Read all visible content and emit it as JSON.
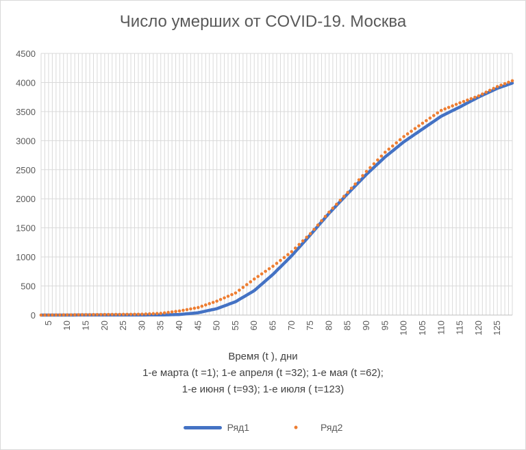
{
  "chart_data": {
    "type": "line",
    "title": "Число умерших от COVID-19. Москва",
    "xlabel_lines": [
      "Время (t ), дни",
      "1-е марта (t =1); 1-е апреля (t =32); 1-е мая (t =62);",
      "1-е июня ( t=93); 1-е июля ( t=123)"
    ],
    "ylabel": "",
    "ylim": [
      0,
      4500
    ],
    "yticks": [
      0,
      500,
      1000,
      1500,
      2000,
      2500,
      3000,
      3500,
      4000,
      4500
    ],
    "xlim": [
      3,
      129
    ],
    "xticks": [
      5,
      10,
      15,
      20,
      25,
      30,
      35,
      40,
      45,
      50,
      55,
      60,
      65,
      70,
      75,
      80,
      85,
      90,
      95,
      100,
      105,
      110,
      115,
      120,
      125
    ],
    "grid": true,
    "legend_position": "bottom",
    "series": [
      {
        "name": "Ряд1",
        "style": "line",
        "color": "#4472c4",
        "x": [
          3,
          35,
          40,
          45,
          50,
          55,
          60,
          65,
          70,
          75,
          80,
          85,
          90,
          95,
          100,
          105,
          110,
          115,
          120,
          125,
          129
        ],
        "y": [
          0,
          2,
          10,
          40,
          110,
          230,
          420,
          700,
          1020,
          1380,
          1750,
          2090,
          2420,
          2720,
          2980,
          3200,
          3420,
          3580,
          3750,
          3900,
          3990
        ]
      },
      {
        "name": "Ряд2",
        "style": "dots",
        "color": "#ed7d31",
        "x": [
          3,
          30,
          35,
          40,
          45,
          50,
          55,
          60,
          65,
          70,
          75,
          80,
          85,
          90,
          95,
          100,
          105,
          110,
          115,
          120,
          125,
          129
        ],
        "y": [
          0,
          15,
          30,
          70,
          130,
          240,
          380,
          620,
          840,
          1090,
          1400,
          1770,
          2110,
          2470,
          2800,
          3070,
          3300,
          3520,
          3650,
          3770,
          3930,
          4030
        ]
      }
    ]
  }
}
